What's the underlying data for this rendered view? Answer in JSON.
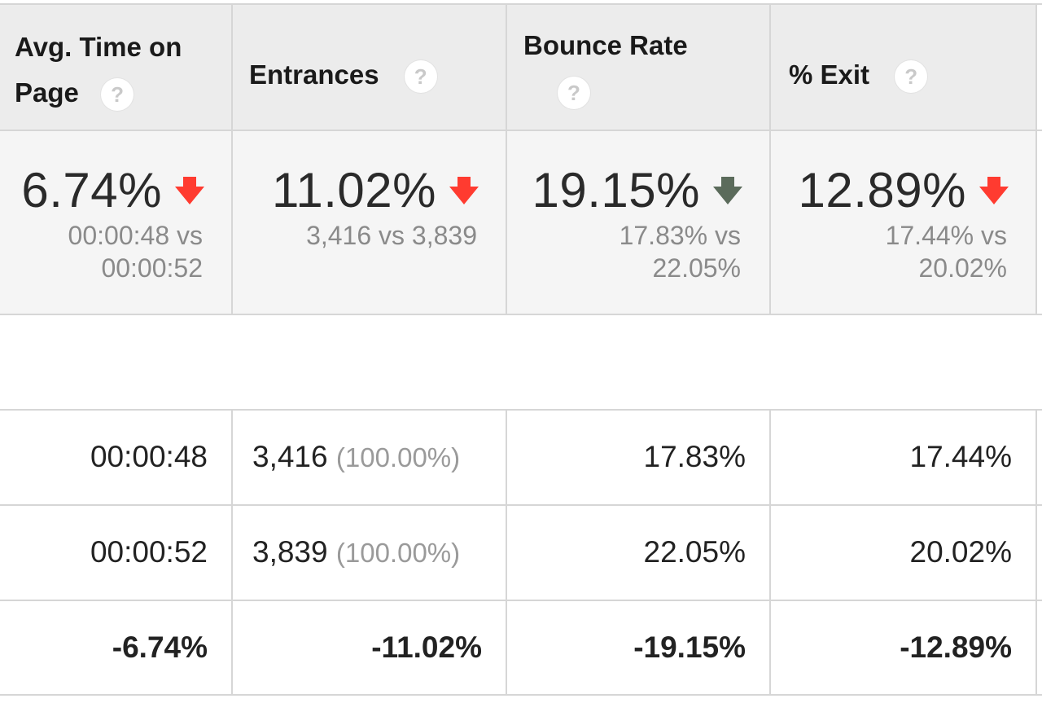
{
  "columns": [
    {
      "title_line1": "Avg. Time on",
      "title_line2": "Page",
      "help": "?"
    },
    {
      "title": "Entrances",
      "help": "?"
    },
    {
      "title": "Bounce Rate",
      "help": "?"
    },
    {
      "title": "% Exit",
      "help": "?"
    }
  ],
  "summary": [
    {
      "value": "6.74%",
      "direction": "down",
      "arrow_color": "#ff3b30",
      "compare_line1": "00:00:48 vs",
      "compare_line2": "00:00:52"
    },
    {
      "value": "11.02%",
      "direction": "down",
      "arrow_color": "#ff3b30",
      "compare_line1": "3,416 vs 3,839"
    },
    {
      "value": "19.15%",
      "direction": "down",
      "arrow_color": "#5b6b5b",
      "compare_line1": "17.83% vs",
      "compare_line2": "22.05%"
    },
    {
      "value": "12.89%",
      "direction": "down",
      "arrow_color": "#ff3b30",
      "compare_line1": "17.44% vs",
      "compare_line2": "20.02%"
    }
  ],
  "rows": [
    {
      "avg_time": "00:00:48",
      "entrances": "3,416",
      "entrances_pct": "(100.00%)",
      "bounce_rate": "17.83%",
      "exit": "17.44%"
    },
    {
      "avg_time": "00:00:52",
      "entrances": "3,839",
      "entrances_pct": "(100.00%)",
      "bounce_rate": "22.05%",
      "exit": "20.02%"
    },
    {
      "avg_time": "-6.74%",
      "entrances": "-11.02%",
      "bounce_rate": "-19.15%",
      "exit": "-12.89%"
    }
  ]
}
